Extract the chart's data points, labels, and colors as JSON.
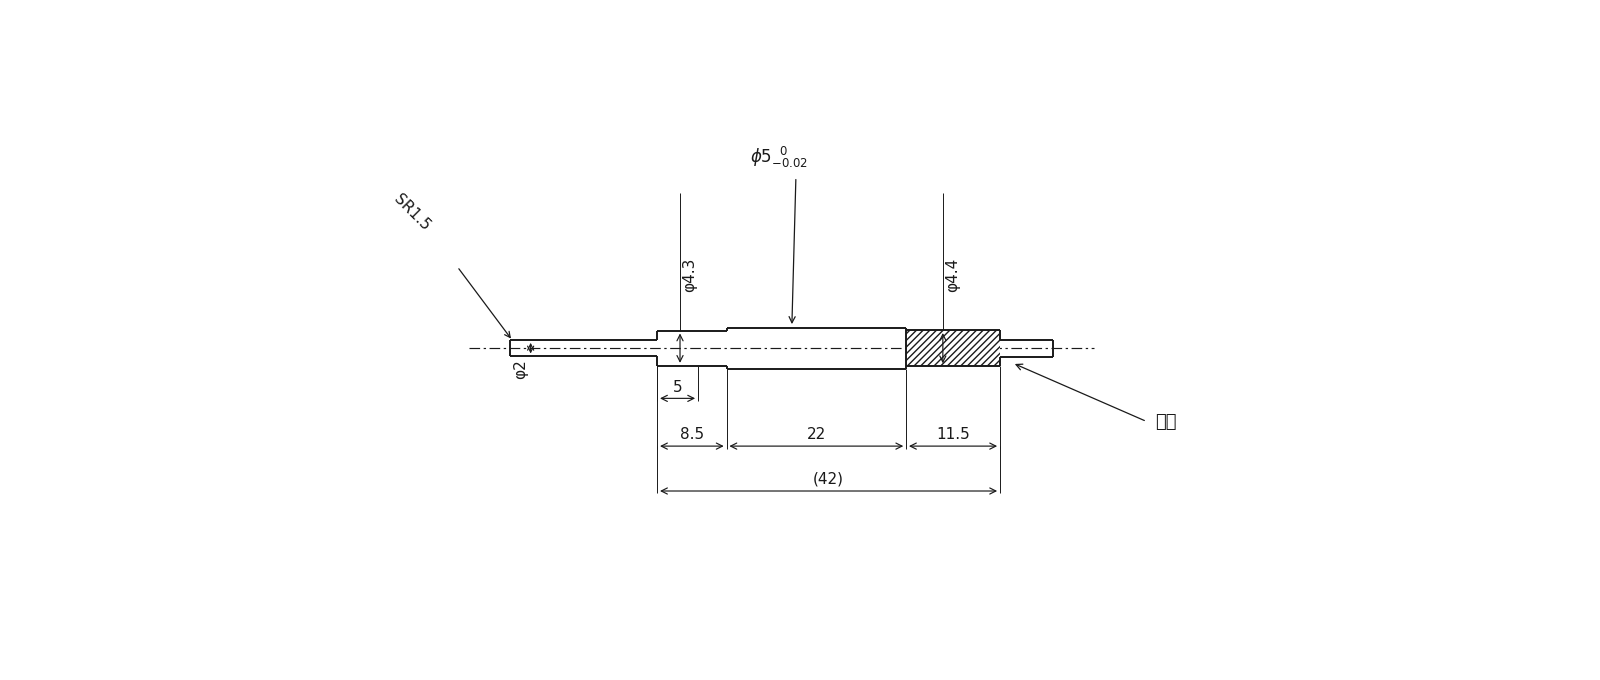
{
  "bg": "#ffffff",
  "lc": "#1a1a1a",
  "fig_w": 16.0,
  "fig_h": 6.8,
  "dpi": 100,
  "BL": 0.0,
  "MID": 8.5,
  "MR": 30.5,
  "RR": 42.0,
  "SR": 48.5,
  "WL": -18.0,
  "R_wire": 1.0,
  "R_body": 2.15,
  "R_main": 2.5,
  "R_resin": 2.2,
  "R_shaft": 1.05,
  "xlim_lo": -80,
  "xlim_hi": 115,
  "ylim_lo": -38,
  "ylim_hi": 40,
  "label_phi2": "φ2",
  "label_phi43": "φ4.3",
  "label_phi5_main": "φ5",
  "label_phi5_tol": "  ⁰₋₀.₀₂",
  "label_phi44": "φ4.4",
  "label_SR15": "SR1.5",
  "label_resin": "樹脂",
  "label_5": "5",
  "label_85": "8.5",
  "label_22": "22",
  "label_115": "11.5",
  "label_42": "(42)"
}
